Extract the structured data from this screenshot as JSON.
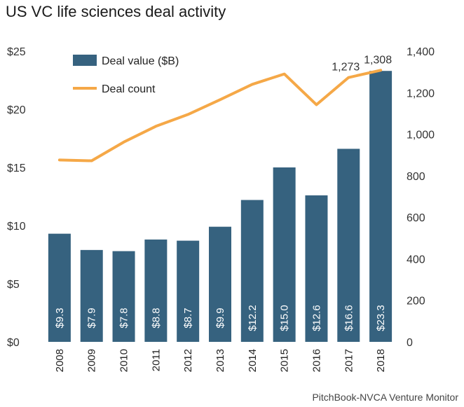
{
  "title": "US VC life sciences deal activity",
  "source": "PitchBook-NVCA Venture Monitor",
  "colors": {
    "bar": "#36627f",
    "line": "#f5a847"
  },
  "chart_data": {
    "type": "bar+line",
    "title": "US VC life sciences deal activity",
    "categories": [
      "2008",
      "2009",
      "2010",
      "2011",
      "2012",
      "2013",
      "2014",
      "2015",
      "2016",
      "2017",
      "2018"
    ],
    "series": [
      {
        "name": "Deal value ($B)",
        "type": "bar",
        "axis": "left",
        "values": [
          9.3,
          7.9,
          7.8,
          8.8,
          8.7,
          9.9,
          12.2,
          15.0,
          12.6,
          16.6,
          23.3
        ],
        "labels": [
          "$9.3",
          "$7.9",
          "$7.8",
          "$8.8",
          "$8.7",
          "$9.9",
          "$12.2",
          "$15.0",
          "$12.6",
          "$16.6",
          "$23.3"
        ]
      },
      {
        "name": "Deal count",
        "type": "line",
        "axis": "right",
        "values": [
          876,
          872,
          962,
          1038,
          1095,
          1166,
          1240,
          1290,
          1142,
          1273,
          1308
        ]
      }
    ],
    "point_labels": [
      {
        "index": 9,
        "text": "1,273"
      },
      {
        "index": 10,
        "text": "1,308"
      }
    ],
    "y_left": {
      "lim": [
        0,
        25
      ],
      "ticks": [
        0,
        5,
        10,
        15,
        20,
        25
      ],
      "tick_labels": [
        "$0",
        "$5",
        "$10",
        "$15",
        "$20",
        "$25"
      ]
    },
    "y_right": {
      "lim": [
        0,
        1400
      ],
      "ticks": [
        0,
        200,
        400,
        600,
        800,
        1000,
        1200,
        1400
      ],
      "tick_labels": [
        "0",
        "200",
        "400",
        "600",
        "800",
        "1,000",
        "1,200",
        "1,400"
      ]
    },
    "grid": false,
    "legend": "top-left"
  }
}
